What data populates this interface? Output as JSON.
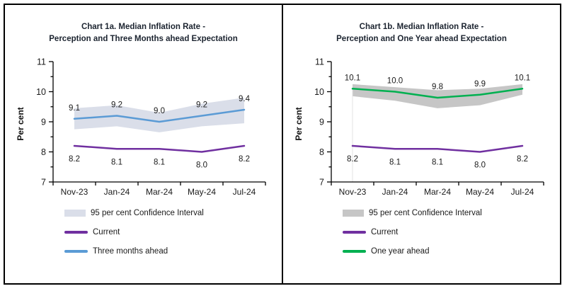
{
  "figure": {
    "background": "#ffffff",
    "border_color": "#000000"
  },
  "chart_data": [
    {
      "id": "chart-1a",
      "type": "line",
      "title_lines": [
        "Chart 1a. Median Inflation Rate -",
        "Perception and Three Months ahead Expectation"
      ],
      "ylabel": "Per cent",
      "xlabel": "",
      "categories": [
        "Nov-23",
        "Jan-24",
        "Mar-24",
        "May-24",
        "Jul-24"
      ],
      "ylim": [
        7,
        11
      ],
      "yticks": [
        7,
        8,
        9,
        10,
        11
      ],
      "grid": false,
      "legend_position": "bottom-left",
      "series": [
        {
          "name": "Current",
          "values": [
            8.2,
            8.1,
            8.1,
            8.0,
            8.2
          ],
          "color": "#7030A0",
          "label_side": "below"
        },
        {
          "name": "Three months ahead",
          "values": [
            9.1,
            9.2,
            9.0,
            9.2,
            9.4
          ],
          "color": "#5B9BD5",
          "label_side": "above"
        }
      ],
      "band": {
        "name": "95 per cent Confidence Interval",
        "color": "#DADEE9",
        "upper": [
          9.45,
          9.55,
          9.3,
          9.6,
          9.8
        ],
        "lower": [
          8.75,
          8.85,
          8.65,
          8.85,
          8.95
        ]
      }
    },
    {
      "id": "chart-1b",
      "type": "line",
      "title_lines": [
        "Chart 1b. Median Inflation Rate -",
        "Perception and One Year ahead Expectation"
      ],
      "ylabel": "Per cent",
      "xlabel": "",
      "categories": [
        "Nov-23",
        "Jan-24",
        "Mar-24",
        "May-24",
        "Jul-24"
      ],
      "ylim": [
        7,
        11
      ],
      "yticks": [
        7,
        8,
        9,
        10,
        11
      ],
      "grid": false,
      "legend_position": "bottom-left",
      "dropline_at_index": 0,
      "series": [
        {
          "name": "Current",
          "values": [
            8.2,
            8.1,
            8.1,
            8.0,
            8.2
          ],
          "color": "#7030A0",
          "label_side": "below"
        },
        {
          "name": "One year ahead",
          "values": [
            10.1,
            10.0,
            9.8,
            9.9,
            10.1
          ],
          "color": "#00B050",
          "label_side": "above"
        }
      ],
      "band": {
        "name": "95 per cent Confidence Interval",
        "color": "#C6C6C6",
        "upper": [
          10.25,
          10.15,
          10.05,
          10.1,
          10.25
        ],
        "lower": [
          9.85,
          9.7,
          9.45,
          9.55,
          9.9
        ]
      }
    }
  ]
}
